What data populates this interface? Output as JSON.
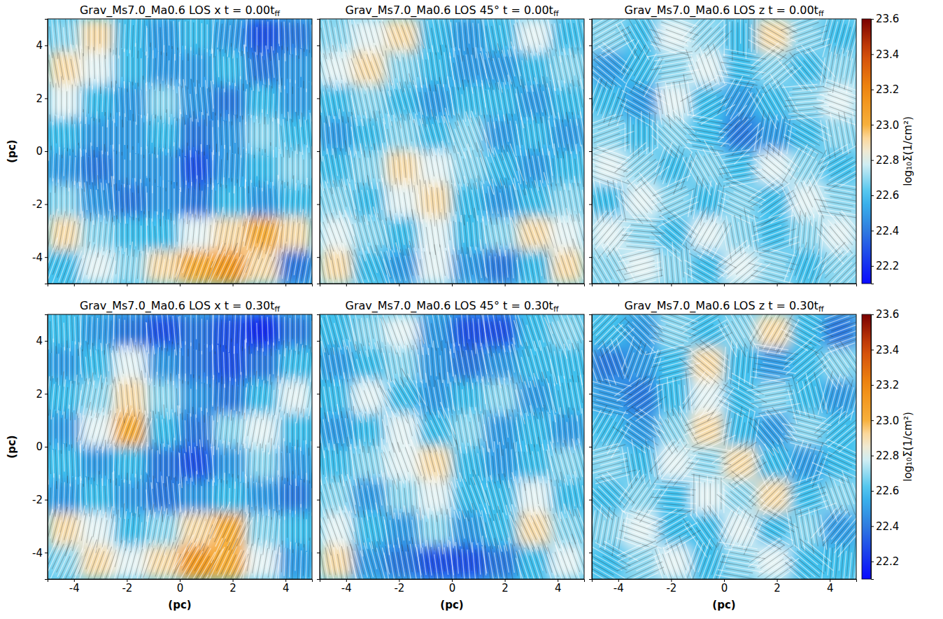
{
  "chart_data": [
    {
      "type": "heatmap",
      "title": "Grav_Ms7.0_Ma0.6 LOS x t = 0.00tff",
      "ylabel": "(pc)",
      "tick_labels": "y",
      "xlim": [
        -5,
        5
      ],
      "ylim": [
        -5,
        5
      ],
      "xticks": [
        -4,
        -2,
        0,
        2,
        4
      ],
      "yticks": [
        -4,
        -2,
        0,
        2,
        4
      ],
      "zlim": [
        22.1,
        23.6
      ],
      "cells": [
        [
          22.7,
          22.9,
          22.6,
          22.5,
          22.6,
          22.5,
          22.3,
          22.4
        ],
        [
          22.9,
          22.8,
          22.6,
          22.5,
          22.5,
          22.6,
          22.4,
          22.5
        ],
        [
          22.8,
          22.6,
          22.5,
          22.7,
          22.5,
          22.4,
          22.6,
          22.5
        ],
        [
          22.6,
          22.5,
          22.5,
          22.6,
          22.4,
          22.5,
          22.7,
          22.6
        ],
        [
          22.5,
          22.4,
          22.5,
          22.5,
          22.3,
          22.5,
          22.6,
          22.7
        ],
        [
          22.7,
          22.5,
          22.4,
          22.5,
          22.4,
          22.6,
          22.5,
          22.6
        ],
        [
          22.9,
          22.7,
          22.6,
          22.6,
          22.8,
          22.9,
          23.0,
          22.9
        ],
        [
          22.6,
          22.8,
          22.7,
          22.9,
          23.0,
          23.1,
          22.9,
          22.4
        ]
      ],
      "field_angle": [
        [
          95,
          90,
          88,
          92,
          90,
          85,
          90,
          92
        ],
        [
          100,
          92,
          90,
          88,
          90,
          92,
          95,
          90
        ],
        [
          90,
          88,
          92,
          90,
          95,
          90,
          88,
          90
        ],
        [
          92,
          90,
          90,
          88,
          90,
          92,
          90,
          95
        ],
        [
          88,
          92,
          90,
          90,
          92,
          88,
          90,
          90
        ],
        [
          90,
          95,
          92,
          90,
          88,
          90,
          92,
          88
        ],
        [
          80,
          85,
          90,
          92,
          85,
          80,
          75,
          85
        ],
        [
          70,
          75,
          85,
          80,
          70,
          65,
          70,
          80
        ]
      ]
    },
    {
      "type": "heatmap",
      "title": "Grav_Ms7.0_Ma0.6 LOS 45° t = 0.00tff",
      "tick_labels": false,
      "xlim": [
        -5,
        5
      ],
      "ylim": [
        -5,
        5
      ],
      "xticks": [
        -4,
        -2,
        0,
        2,
        4
      ],
      "yticks": [
        -4,
        -2,
        0,
        2,
        4
      ],
      "zlim": [
        22.1,
        23.6
      ],
      "cells": [
        [
          22.7,
          22.8,
          22.9,
          22.6,
          22.5,
          22.6,
          22.8,
          22.6
        ],
        [
          22.8,
          22.9,
          22.7,
          22.6,
          22.5,
          22.5,
          22.6,
          22.7
        ],
        [
          22.6,
          22.7,
          22.6,
          22.5,
          22.6,
          22.6,
          22.5,
          22.6
        ],
        [
          22.5,
          22.6,
          22.7,
          22.6,
          22.7,
          22.5,
          22.6,
          22.5
        ],
        [
          22.6,
          22.7,
          22.9,
          22.8,
          22.7,
          22.6,
          22.5,
          22.6
        ],
        [
          22.7,
          22.6,
          22.8,
          22.9,
          22.6,
          22.5,
          22.6,
          22.7
        ],
        [
          22.8,
          22.7,
          22.6,
          22.8,
          22.6,
          22.7,
          22.9,
          22.8
        ],
        [
          22.9,
          22.6,
          22.5,
          22.8,
          22.5,
          22.4,
          22.6,
          22.9
        ]
      ],
      "field_angle": [
        [
          100,
          105,
          110,
          100,
          95,
          100,
          105,
          100
        ],
        [
          105,
          110,
          100,
          98,
          100,
          105,
          100,
          102
        ],
        [
          100,
          102,
          105,
          100,
          98,
          100,
          103,
          100
        ],
        [
          95,
          100,
          100,
          105,
          110,
          100,
          98,
          100
        ],
        [
          100,
          98,
          95,
          100,
          105,
          110,
          100,
          96
        ],
        [
          105,
          100,
          98,
          95,
          100,
          100,
          105,
          100
        ],
        [
          110,
          105,
          100,
          98,
          95,
          100,
          110,
          105
        ],
        [
          100,
          110,
          105,
          100,
          100,
          95,
          100,
          108
        ]
      ]
    },
    {
      "type": "heatmap",
      "title": "Grav_Ms7.0_Ma0.6 LOS z t = 0.00tff",
      "tick_labels": false,
      "xlim": [
        -5,
        5
      ],
      "ylim": [
        -5,
        5
      ],
      "xticks": [
        -4,
        -2,
        0,
        2,
        4
      ],
      "yticks": [
        -4,
        -2,
        0,
        2,
        4
      ],
      "zlim": [
        22.1,
        23.6
      ],
      "cells": [
        [
          22.7,
          22.6,
          22.8,
          22.7,
          22.6,
          22.9,
          22.7,
          22.6
        ],
        [
          22.5,
          22.6,
          22.7,
          22.8,
          22.6,
          22.7,
          22.6,
          22.7
        ],
        [
          22.6,
          22.5,
          22.8,
          22.6,
          22.5,
          22.6,
          22.7,
          22.8
        ],
        [
          22.7,
          22.6,
          22.7,
          22.6,
          22.4,
          22.5,
          22.6,
          22.7
        ],
        [
          22.8,
          22.7,
          22.6,
          22.7,
          22.6,
          22.8,
          22.7,
          22.6
        ],
        [
          22.6,
          22.8,
          22.7,
          22.6,
          22.7,
          22.6,
          22.8,
          22.7
        ],
        [
          22.8,
          22.7,
          22.6,
          22.8,
          22.7,
          22.6,
          22.7,
          22.8
        ],
        [
          22.7,
          22.8,
          22.7,
          22.6,
          22.8,
          22.7,
          22.6,
          22.7
        ]
      ],
      "field_angle": [
        [
          30,
          120,
          160,
          45,
          90,
          150,
          20,
          75
        ],
        [
          140,
          60,
          10,
          110,
          170,
          40,
          130,
          80
        ],
        [
          70,
          150,
          100,
          30,
          60,
          120,
          5,
          160
        ],
        [
          20,
          90,
          135,
          170,
          45,
          80,
          150,
          100
        ],
        [
          160,
          40,
          70,
          120,
          10,
          140,
          60,
          30
        ],
        [
          100,
          130,
          25,
          80,
          155,
          35,
          115,
          170
        ],
        [
          50,
          175,
          140,
          60,
          100,
          20,
          85,
          130
        ],
        [
          120,
          15,
          95,
          150,
          40,
          165,
          70,
          45
        ]
      ],
      "colorbar": {
        "range": [
          22.1,
          23.6
        ],
        "label": "log₁₀Σ(1/cm²)",
        "ticks": [
          22.2,
          22.4,
          22.6,
          22.8,
          {
            "value": 23,
            "label": "23.0"
          },
          23.2,
          23.4,
          23.6
        ]
      }
    },
    {
      "type": "heatmap",
      "title": "Grav_Ms7.0_Ma0.6 LOS x t = 0.30tff",
      "xlabel": "(pc)",
      "ylabel": "(pc)",
      "tick_labels": true,
      "xlim": [
        -5,
        5
      ],
      "ylim": [
        -5,
        5
      ],
      "xticks": [
        -4,
        -2,
        0,
        2,
        4
      ],
      "yticks": [
        -4,
        -2,
        0,
        2,
        4
      ],
      "zlim": [
        22.1,
        23.6
      ],
      "cells": [
        [
          22.6,
          22.5,
          22.4,
          22.3,
          22.4,
          22.3,
          22.2,
          22.4
        ],
        [
          22.5,
          22.6,
          22.8,
          22.5,
          22.4,
          22.3,
          22.4,
          22.6
        ],
        [
          22.6,
          22.7,
          22.9,
          22.7,
          22.5,
          22.4,
          22.6,
          22.8
        ],
        [
          22.5,
          22.8,
          23.0,
          22.6,
          22.4,
          22.7,
          22.8,
          22.6
        ],
        [
          22.6,
          22.5,
          22.6,
          22.4,
          22.3,
          22.5,
          22.7,
          22.5
        ],
        [
          22.5,
          22.6,
          22.5,
          22.4,
          22.5,
          22.6,
          22.5,
          22.4
        ],
        [
          22.9,
          22.8,
          22.6,
          22.7,
          22.9,
          23.0,
          22.7,
          22.6
        ],
        [
          22.7,
          22.9,
          22.8,
          22.9,
          23.1,
          23.0,
          22.8,
          22.5
        ]
      ],
      "field_angle": [
        [
          92,
          88,
          90,
          95,
          90,
          88,
          92,
          90
        ],
        [
          90,
          95,
          100,
          88,
          90,
          92,
          90,
          85
        ],
        [
          85,
          80,
          95,
          92,
          90,
          88,
          85,
          80
        ],
        [
          90,
          75,
          70,
          95,
          92,
          85,
          80,
          90
        ],
        [
          92,
          90,
          88,
          90,
          95,
          90,
          88,
          92
        ],
        [
          88,
          92,
          90,
          95,
          90,
          88,
          92,
          90
        ],
        [
          75,
          80,
          85,
          80,
          70,
          65,
          85,
          90
        ],
        [
          65,
          70,
          75,
          70,
          60,
          65,
          80,
          88
        ]
      ]
    },
    {
      "type": "heatmap",
      "title": "Grav_Ms7.0_Ma0.6 LOS 45° t = 0.30tff",
      "xlabel": "(pc)",
      "tick_labels": "x",
      "xlim": [
        -5,
        5
      ],
      "ylim": [
        -5,
        5
      ],
      "xticks": [
        -4,
        -2,
        0,
        2,
        4
      ],
      "yticks": [
        -4,
        -2,
        0,
        2,
        4
      ],
      "zlim": [
        22.1,
        23.6
      ],
      "cells": [
        [
          22.6,
          22.7,
          22.8,
          22.5,
          22.3,
          22.3,
          22.6,
          22.7
        ],
        [
          22.5,
          22.6,
          22.7,
          22.5,
          22.4,
          22.5,
          22.6,
          22.6
        ],
        [
          22.6,
          22.8,
          22.6,
          22.5,
          22.6,
          22.7,
          22.5,
          22.6
        ],
        [
          22.5,
          22.6,
          22.8,
          22.6,
          22.7,
          22.5,
          22.6,
          22.5
        ],
        [
          22.6,
          22.7,
          22.8,
          22.9,
          22.6,
          22.5,
          22.6,
          22.7
        ],
        [
          22.7,
          22.5,
          22.7,
          22.8,
          22.6,
          22.6,
          22.8,
          22.6
        ],
        [
          22.8,
          22.6,
          22.5,
          22.7,
          22.5,
          22.6,
          22.9,
          22.7
        ],
        [
          22.9,
          22.5,
          22.4,
          22.3,
          22.3,
          22.4,
          22.6,
          22.8
        ]
      ],
      "field_angle": [
        [
          105,
          100,
          110,
          100,
          95,
          100,
          108,
          112
        ],
        [
          100,
          105,
          100,
          95,
          100,
          102,
          105,
          100
        ],
        [
          98,
          110,
          120,
          100,
          95,
          100,
          105,
          100
        ],
        [
          100,
          95,
          105,
          115,
          100,
          98,
          100,
          95
        ],
        [
          95,
          100,
          110,
          105,
          100,
          95,
          100,
          105
        ],
        [
          105,
          100,
          95,
          100,
          110,
          105,
          98,
          100
        ],
        [
          110,
          100,
          98,
          95,
          100,
          105,
          115,
          110
        ],
        [
          100,
          105,
          100,
          98,
          95,
          100,
          108,
          110
        ]
      ]
    },
    {
      "type": "heatmap",
      "title": "Grav_Ms7.0_Ma0.6 LOS z t = 0.30tff",
      "xlabel": "(pc)",
      "tick_labels": "x",
      "xlim": [
        -5,
        5
      ],
      "ylim": [
        -5,
        5
      ],
      "xticks": [
        -4,
        -2,
        0,
        2,
        4
      ],
      "yticks": [
        -4,
        -2,
        0,
        2,
        4
      ],
      "zlim": [
        22.1,
        23.6
      ],
      "cells": [
        [
          22.6,
          22.5,
          22.7,
          22.6,
          22.7,
          22.9,
          22.6,
          22.4
        ],
        [
          22.4,
          22.5,
          22.6,
          22.9,
          22.6,
          22.5,
          22.6,
          22.7
        ],
        [
          22.5,
          22.4,
          22.6,
          22.8,
          22.6,
          22.7,
          22.6,
          22.5
        ],
        [
          22.6,
          22.5,
          22.7,
          22.9,
          22.6,
          22.5,
          22.7,
          22.6
        ],
        [
          22.7,
          22.6,
          22.8,
          22.7,
          22.9,
          22.6,
          22.5,
          22.6
        ],
        [
          22.6,
          22.7,
          22.6,
          22.8,
          22.7,
          22.9,
          22.6,
          22.7
        ],
        [
          22.7,
          22.8,
          22.6,
          22.6,
          22.8,
          22.6,
          22.7,
          22.5
        ],
        [
          22.6,
          22.7,
          22.8,
          22.6,
          22.7,
          22.8,
          22.6,
          22.6
        ]
      ],
      "field_angle": [
        [
          45,
          135,
          160,
          30,
          120,
          60,
          150,
          20
        ],
        [
          110,
          70,
          15,
          140,
          85,
          170,
          40,
          125
        ],
        [
          165,
          35,
          95,
          55,
          150,
          10,
          105,
          75
        ],
        [
          60,
          145,
          120,
          25,
          80,
          130,
          165,
          40
        ],
        [
          15,
          100,
          50,
          170,
          35,
          115,
          70,
          155
        ],
        [
          135,
          55,
          175,
          90,
          140,
          45,
          20,
          110
        ],
        [
          80,
          160,
          30,
          125,
          65,
          150,
          100,
          50
        ],
        [
          150,
          25,
          110,
          70,
          170,
          35,
          140,
          85
        ]
      ],
      "colorbar": {
        "range": [
          22.1,
          23.6
        ],
        "label": "log₁₀Σ(1/cm²)",
        "ticks": [
          22.2,
          22.4,
          22.6,
          22.8,
          {
            "value": 23,
            "label": "23.0"
          },
          23.2,
          23.4,
          23.6
        ]
      }
    }
  ]
}
